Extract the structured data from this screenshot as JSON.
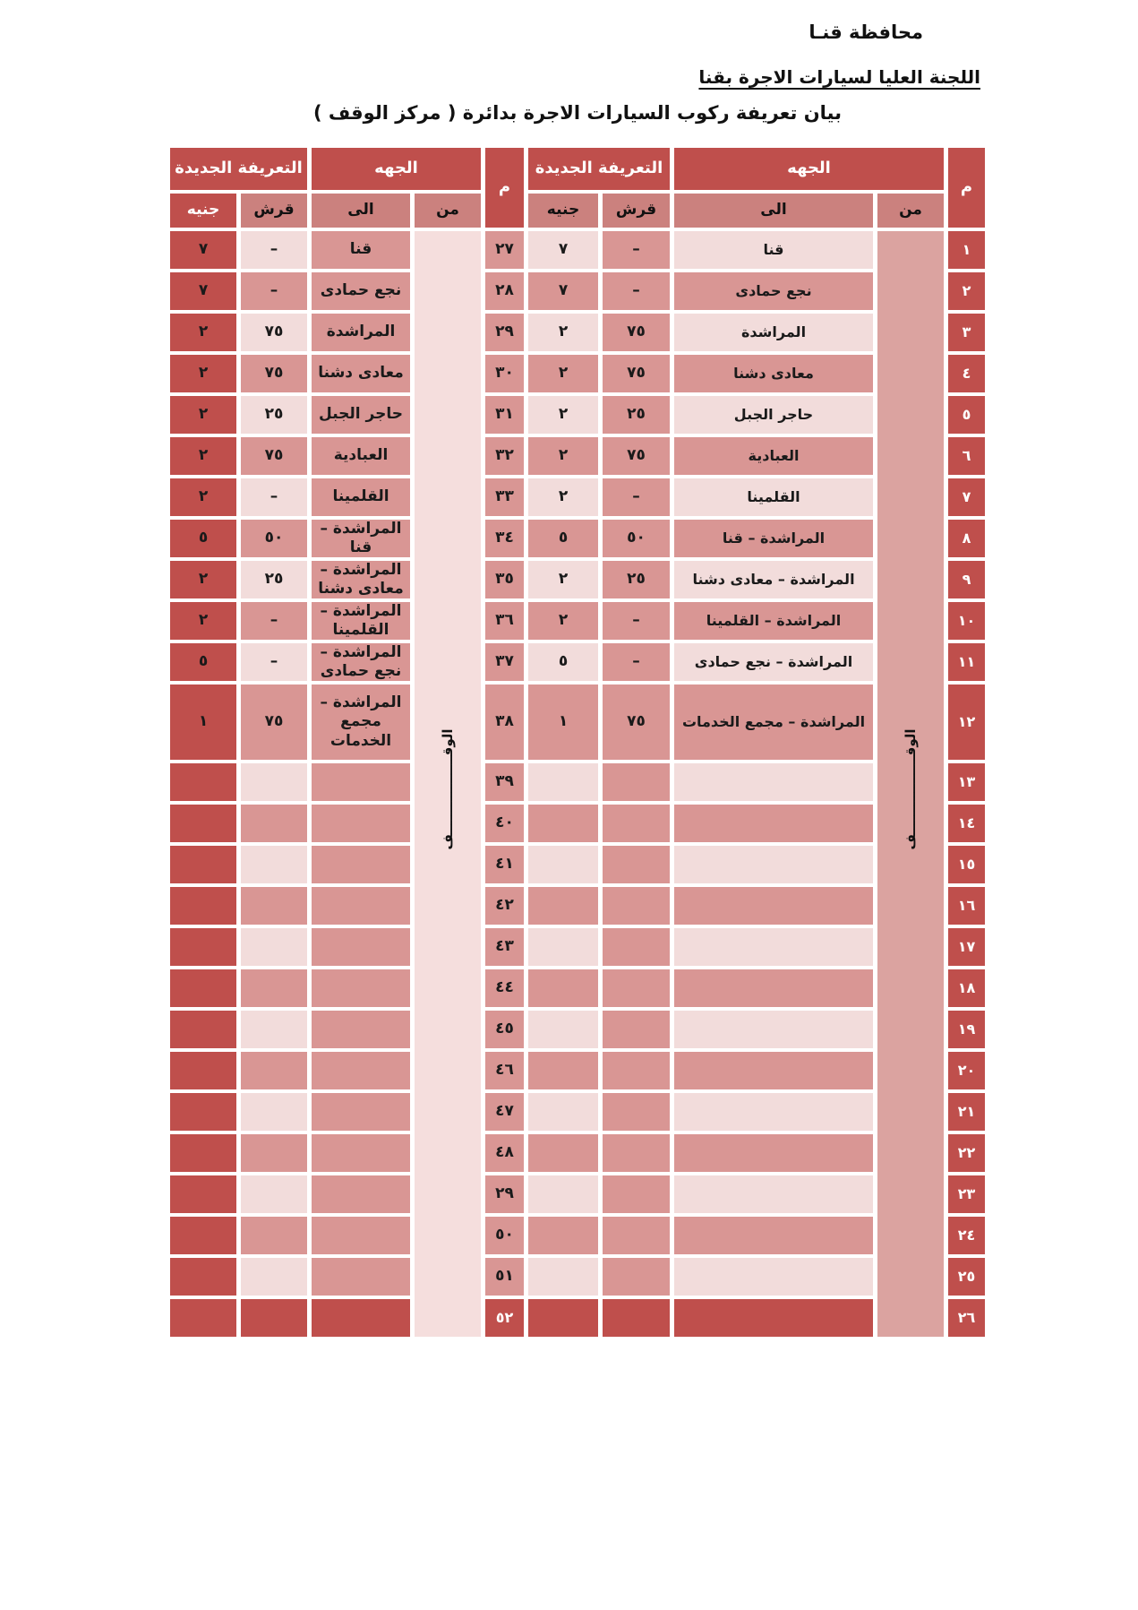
{
  "page": {
    "governorate_title": "محافظة قنـا",
    "committee_title": "اللجنة العليا لسيارات الاجرة بقنا",
    "table_title": "بيان تعريفة ركوب السيارات الاجرة بدائرة ( مركز الوقف )"
  },
  "colors": {
    "dark_red": "#bf4f4c",
    "medium_pink": "#d99694",
    "light_pink": "#f2dcdb",
    "subheader_pink": "#cb817e",
    "merged_from_right": "#dba3a0",
    "merged_from_left": "#f5dedd",
    "text_black": "#1a1a1a",
    "text_white": "#ffffff"
  },
  "table": {
    "headers": {
      "seq": "م",
      "direction": "الجهه",
      "new_tariff": "التعريفة الجديدة",
      "from": "من",
      "to": "الى",
      "piasters": "قرش",
      "pounds": "جنيه"
    },
    "from_merged_label": "الوقـــــــــــــــــف",
    "rows": [
      {
        "r": "١",
        "l": "٢٧",
        "to": "قنا",
        "pi": "–",
        "po": "٧"
      },
      {
        "r": "٢",
        "l": "٢٨",
        "to": "نجع حمادى",
        "pi": "–",
        "po": "٧"
      },
      {
        "r": "٣",
        "l": "٢٩",
        "to": "المراشدة",
        "pi": "٧٥",
        "po": "٢"
      },
      {
        "r": "٤",
        "l": "٣٠",
        "to": "معادى دشنا",
        "pi": "٧٥",
        "po": "٢"
      },
      {
        "r": "٥",
        "l": "٣١",
        "to": "حاجر الجبل",
        "pi": "٢٥",
        "po": "٢"
      },
      {
        "r": "٦",
        "l": "٣٢",
        "to": "العبادية",
        "pi": "٧٥",
        "po": "٢"
      },
      {
        "r": "٧",
        "l": "٣٣",
        "to": "القلمينا",
        "pi": "–",
        "po": "٢"
      },
      {
        "r": "٨",
        "l": "٣٤",
        "to": "المراشدة – قنا",
        "pi": "٥٠",
        "po": "٥"
      },
      {
        "r": "٩",
        "l": "٣٥",
        "to": "المراشدة – معادى دشنا",
        "pi": "٢٥",
        "po": "٢"
      },
      {
        "r": "١٠",
        "l": "٣٦",
        "to": "المراشدة – القلمينا",
        "pi": "–",
        "po": "٢"
      },
      {
        "r": "١١",
        "l": "٣٧",
        "to": "المراشدة – نجع حمادى",
        "pi": "–",
        "po": "٥"
      },
      {
        "r": "١٢",
        "l": "٣٨",
        "to": "المراشدة – مجمع الخدمات",
        "pi": "٧٥",
        "po": "١"
      },
      {
        "r": "١٣",
        "l": "٣٩",
        "to": "",
        "pi": "",
        "po": ""
      },
      {
        "r": "١٤",
        "l": "٤٠",
        "to": "",
        "pi": "",
        "po": ""
      },
      {
        "r": "١٥",
        "l": "٤١",
        "to": "",
        "pi": "",
        "po": ""
      },
      {
        "r": "١٦",
        "l": "٤٢",
        "to": "",
        "pi": "",
        "po": ""
      },
      {
        "r": "١٧",
        "l": "٤٣",
        "to": "",
        "pi": "",
        "po": ""
      },
      {
        "r": "١٨",
        "l": "٤٤",
        "to": "",
        "pi": "",
        "po": ""
      },
      {
        "r": "١٩",
        "l": "٤٥",
        "to": "",
        "pi": "",
        "po": ""
      },
      {
        "r": "٢٠",
        "l": "٤٦",
        "to": "",
        "pi": "",
        "po": ""
      },
      {
        "r": "٢١",
        "l": "٤٧",
        "to": "",
        "pi": "",
        "po": ""
      },
      {
        "r": "٢٢",
        "l": "٤٨",
        "to": "",
        "pi": "",
        "po": ""
      },
      {
        "r": "٢٣",
        "l": "٢٩",
        "to": "",
        "pi": "",
        "po": ""
      },
      {
        "r": "٢٤",
        "l": "٥٠",
        "to": "",
        "pi": "",
        "po": ""
      },
      {
        "r": "٢٥",
        "l": "٥١",
        "to": "",
        "pi": "",
        "po": ""
      },
      {
        "r": "٢٦",
        "l": "٥٢",
        "to": "",
        "pi": "",
        "po": ""
      }
    ]
  }
}
